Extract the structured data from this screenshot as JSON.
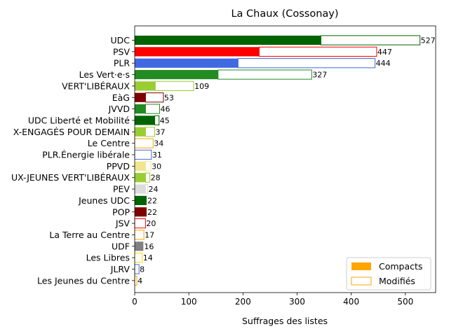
{
  "chart_data": {
    "type": "bar",
    "orientation": "horizontal",
    "title": "La Chaux (Cossonay)",
    "xlabel": "Suffrages des listes",
    "ylabel": "",
    "xlim": [
      0,
      556
    ],
    "xticks": [
      0,
      100,
      200,
      300,
      400,
      500
    ],
    "grid": false,
    "legend_position": "bottom-right",
    "legend": [
      {
        "label": "Compacts",
        "style": "filled",
        "color": "#ffa500"
      },
      {
        "label": "Modifiés",
        "style": "outline",
        "color": "#ffa500"
      }
    ],
    "categories": [
      "UDC",
      "PSV",
      "PLR",
      "Les Vert·e·s",
      "VERT'LIBÉRAUX",
      "EàG",
      "JVVD",
      "UDC Liberté et Mobilité",
      "X-ENGAGÉS POUR DEMAIN",
      "Le Centre",
      "PLR.Énergie libérale",
      "PPVD",
      "UX-JEUNES VERT'LIBÉRAUX",
      "PEV",
      "Jeunes UDC",
      "POP",
      "JSV",
      "La Terre au Centre",
      "UDF",
      "Les Libres",
      "JLRV",
      "Les Jeunes du Centre"
    ],
    "series": [
      {
        "name": "Compacts",
        "values": [
          344,
          230,
          191,
          154,
          38,
          20,
          20,
          37,
          20,
          0,
          0,
          20,
          20,
          20,
          22,
          22,
          0,
          0,
          16,
          0,
          0,
          0
        ]
      },
      {
        "name": "Modifiés",
        "values": [
          183,
          217,
          253,
          173,
          71,
          33,
          26,
          8,
          17,
          34,
          31,
          10,
          8,
          4,
          0,
          0,
          20,
          17,
          0,
          14,
          8,
          4
        ]
      }
    ],
    "totals": [
      527,
      447,
      444,
      327,
      109,
      53,
      46,
      45,
      37,
      34,
      31,
      30,
      28,
      24,
      22,
      22,
      20,
      17,
      16,
      14,
      8,
      4
    ],
    "colors": [
      "#006400",
      "#ff0000",
      "#4169e1",
      "#228b22",
      "#9acd32",
      "#800000",
      "#228b22",
      "#006400",
      "#9acd32",
      "#ffa500",
      "#4169e1",
      "#f0e68c",
      "#9acd32",
      "#dcdcdc",
      "#006400",
      "#800000",
      "#ff0000",
      "#ffa500",
      "#808080",
      "#ffd700",
      "#4169e1",
      "#ffa500"
    ]
  }
}
